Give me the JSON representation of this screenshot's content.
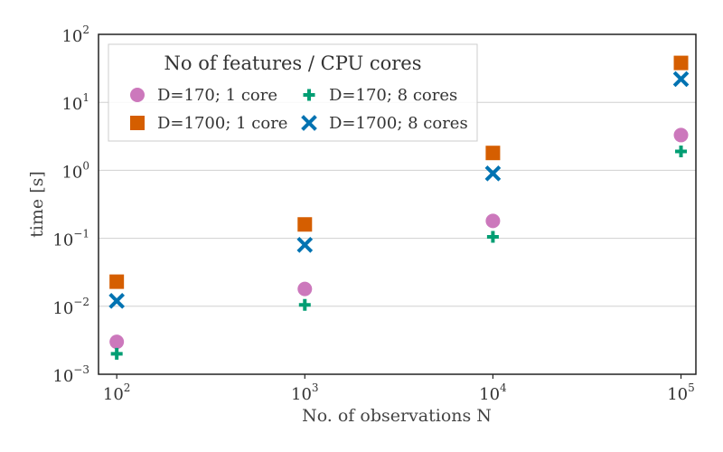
{
  "chart_data": {
    "type": "scatter",
    "x_scale": "log",
    "y_scale": "log",
    "xlabel": "No. of observations N",
    "ylabel": "time [s]",
    "xlim": [
      80,
      120000
    ],
    "ylim": [
      0.001,
      100
    ],
    "x_ticks": [
      {
        "value": 100,
        "base": "10",
        "exp": "2"
      },
      {
        "value": 1000,
        "base": "10",
        "exp": "3"
      },
      {
        "value": 10000,
        "base": "10",
        "exp": "4"
      },
      {
        "value": 100000,
        "base": "10",
        "exp": "5"
      }
    ],
    "y_ticks": [
      {
        "value": 0.001,
        "base": "10",
        "exp": "−3"
      },
      {
        "value": 0.01,
        "base": "10",
        "exp": "−2"
      },
      {
        "value": 0.1,
        "base": "10",
        "exp": "−1"
      },
      {
        "value": 1,
        "base": "10",
        "exp": "0"
      },
      {
        "value": 10,
        "base": "10",
        "exp": "1"
      },
      {
        "value": 100,
        "base": "10",
        "exp": "2"
      }
    ],
    "grid": "horizontal",
    "legend": {
      "title": "No of features / CPU cores",
      "placement": "top-left",
      "columns": 2
    },
    "series": [
      {
        "name": "D=170; 1 core",
        "marker": "circle",
        "color": "#cc78bc",
        "x": [
          100,
          1000,
          10000,
          100000
        ],
        "y": [
          0.003,
          0.018,
          0.18,
          3.3
        ]
      },
      {
        "name": "D=1700; 1 core",
        "marker": "square",
        "color": "#d55e00",
        "x": [
          100,
          1000,
          10000,
          100000
        ],
        "y": [
          0.023,
          0.16,
          1.8,
          38
        ]
      },
      {
        "name": "D=170; 8 cores",
        "marker": "plus",
        "color": "#029e73",
        "x": [
          100,
          1000,
          10000,
          100000
        ],
        "y": [
          0.002,
          0.0105,
          0.105,
          1.9
        ]
      },
      {
        "name": "D=1700; 8 cores",
        "marker": "x",
        "color": "#0173b2",
        "x": [
          100,
          1000,
          10000,
          100000
        ],
        "y": [
          0.012,
          0.08,
          0.9,
          22
        ]
      }
    ]
  }
}
